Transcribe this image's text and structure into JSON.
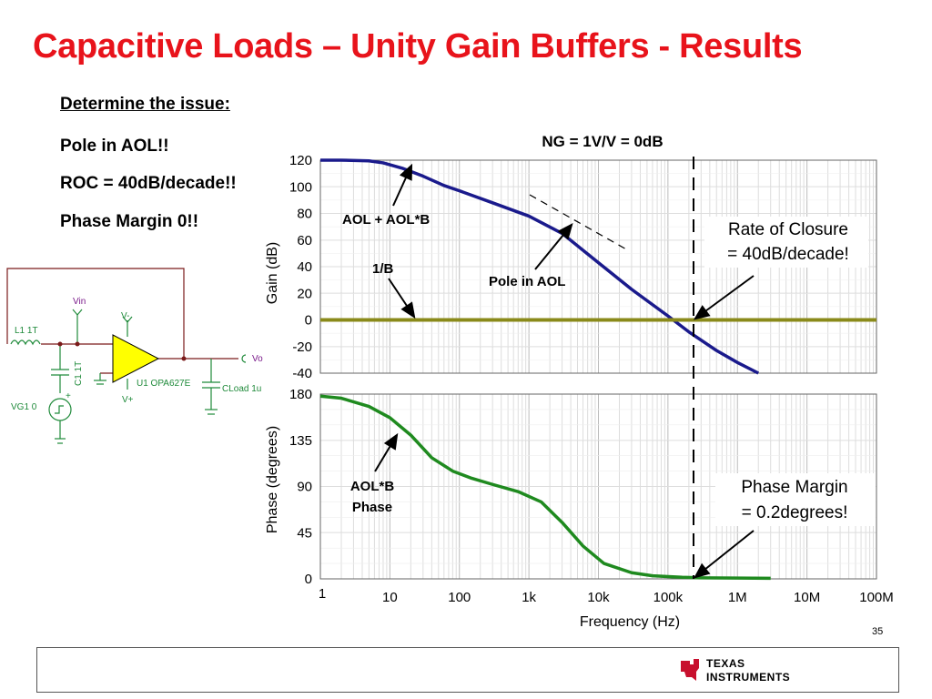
{
  "slide": {
    "title": "Capacitive Loads – Unity Gain Buffers - Results",
    "page_number": "35",
    "brand": {
      "line1": "Texas",
      "line2": "Instruments",
      "color": "#c8102e"
    }
  },
  "bullets": {
    "heading": "Determine the issue:",
    "items": [
      "Pole in AOL!!",
      "ROC = 40dB/decade!!",
      "Phase Margin 0!!"
    ]
  },
  "schematic": {
    "labels": {
      "vin": "Vin",
      "vminus": "V-",
      "vplus": "V+",
      "l1": "L1 1T",
      "c1": "C1 1T",
      "vg1": "VG1 0",
      "u1": "U1 OPA627E",
      "vo": "Vo",
      "cload": "CLoad 1u",
      "plus": "+"
    },
    "colors": {
      "wire": "#7a1a1a",
      "parts": "#1f8a3a",
      "opamp": "#ffff00",
      "text_purple": "#7a1a8a"
    }
  },
  "chart_data": [
    {
      "type": "line",
      "title": "NG = 1V/V = 0dB",
      "xlabel": "",
      "ylabel": "Gain (dB)",
      "xscale": "log",
      "xlim": [
        1,
        100000000
      ],
      "ylim": [
        -40,
        120
      ],
      "yticks": [
        "120",
        "100",
        "80",
        "60",
        "40",
        "20",
        "0",
        "-20",
        "-40"
      ],
      "series": [
        {
          "name": "AOL + AOL*B",
          "color": "#1a1a8c",
          "x": [
            1,
            2,
            5,
            8,
            15,
            30,
            60,
            100,
            300,
            1000,
            3000,
            10000,
            30000,
            100000,
            200000,
            500000,
            1000000,
            2000000
          ],
          "y": [
            120,
            120,
            119.5,
            118,
            114,
            108,
            101,
            97,
            88,
            78,
            65,
            43,
            23,
            3,
            -9,
            -23,
            -32,
            -40
          ]
        },
        {
          "name": "1/B",
          "color": "#8a8a1a",
          "x": [
            1,
            100000000
          ],
          "y": [
            0,
            0
          ]
        }
      ],
      "annotations": {
        "aol": "AOL + AOL*B",
        "one_over_b": "1/B",
        "pole": "Pole in AOL",
        "roc_line1": "Rate of Closure",
        "roc_line2": "= 40dB/decade!"
      }
    },
    {
      "type": "line",
      "xlabel": "Frequency (Hz)",
      "ylabel": "Phase (degrees)",
      "xscale": "log",
      "xlim": [
        1,
        100000000
      ],
      "ylim": [
        0,
        180
      ],
      "xticks": [
        "1",
        "10",
        "100",
        "1k",
        "10k",
        "100k",
        "1M",
        "10M",
        "100M"
      ],
      "yticks": [
        "180",
        "135",
        "90",
        "45",
        "0"
      ],
      "series": [
        {
          "name": "AOL*B Phase",
          "color": "#1f8a1f",
          "x": [
            1,
            2,
            5,
            10,
            20,
            40,
            80,
            150,
            300,
            700,
            1500,
            3000,
            6000,
            12000,
            30000,
            60000,
            160000,
            300000,
            1000000,
            3000000
          ],
          "y": [
            178,
            176,
            168,
            157,
            140,
            118,
            105,
            98,
            92,
            85,
            75,
            55,
            32,
            15,
            6,
            3,
            1.5,
            1,
            0.8,
            0.5
          ]
        }
      ],
      "annotations": {
        "phase_line1": "AOL*B",
        "phase_line2": "Phase",
        "pm_line1": "Phase Margin",
        "pm_line2": "= 0.2degrees!"
      }
    }
  ]
}
